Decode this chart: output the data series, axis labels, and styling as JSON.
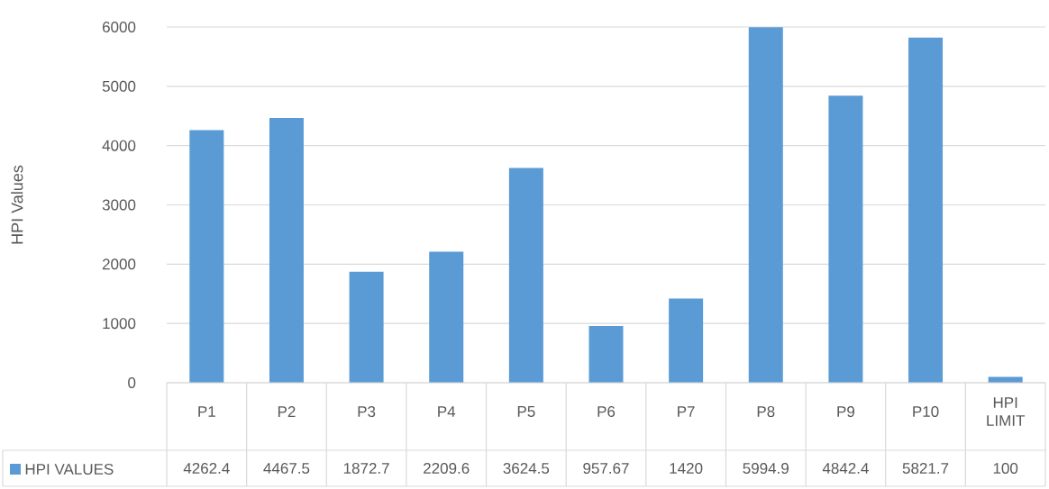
{
  "chart_data": {
    "type": "bar",
    "ylabel": "HPI Values",
    "categories": [
      "P1",
      "P2",
      "P3",
      "P4",
      "P5",
      "P6",
      "P7",
      "P8",
      "P9",
      "P10",
      "HPI LIMIT"
    ],
    "series": [
      {
        "name": "HPI VALUES",
        "color": "#5b9bd5",
        "values": [
          4262.4,
          4467.5,
          1872.7,
          2209.6,
          3624.5,
          957.67,
          1420,
          5994.9,
          4842.4,
          5821.7,
          100
        ]
      }
    ],
    "ylim": [
      0,
      6000
    ],
    "yticks": [
      0,
      1000,
      2000,
      3000,
      4000,
      5000,
      6000
    ],
    "grid": "y",
    "legend": "bottom",
    "data_labels": true
  }
}
